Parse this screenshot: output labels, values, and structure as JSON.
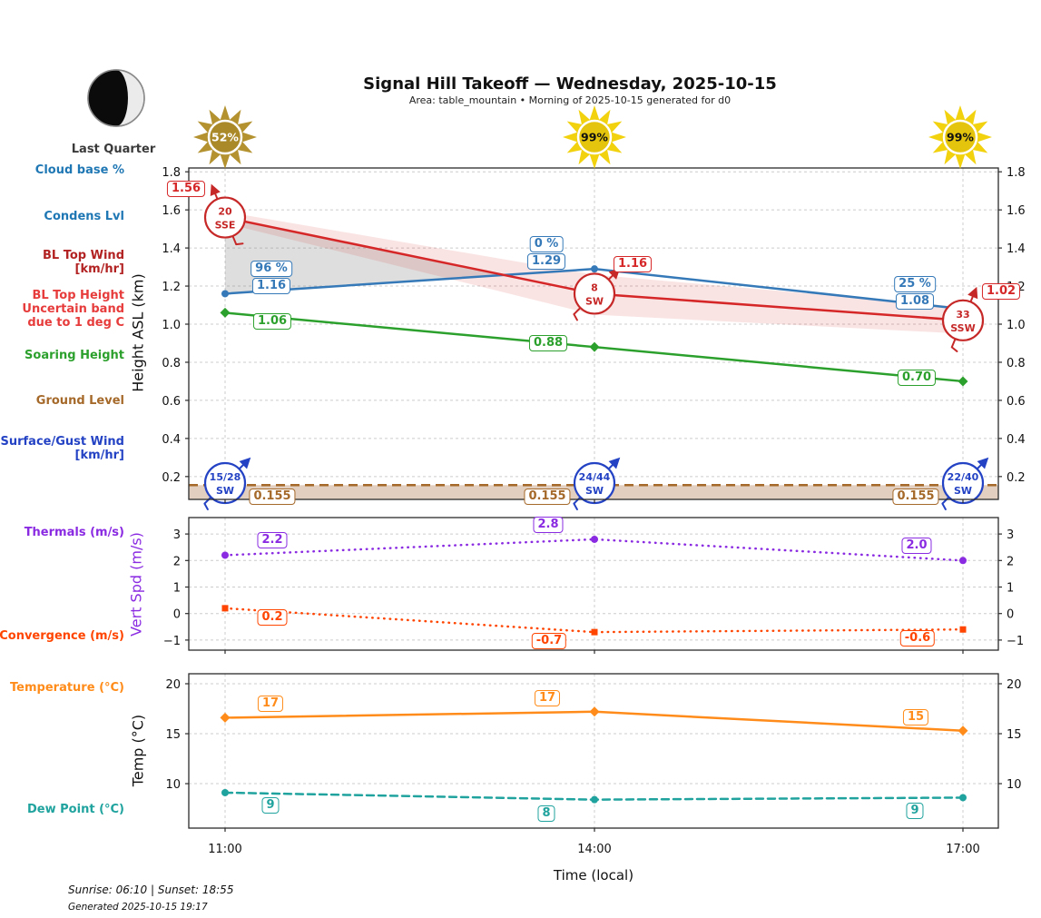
{
  "header": {
    "title": "Signal Hill Takeoff — Wednesday, 2025-10-15",
    "subtitle": "Area: table_mountain • Morning of 2025-10-15 generated for d0"
  },
  "moon": {
    "phase_label": "Last Quarter"
  },
  "suns": [
    {
      "pct": "52%",
      "variant": "dim",
      "color": "#b3922f"
    },
    {
      "pct": "99%",
      "variant": "bright",
      "color": "#f2d20e"
    },
    {
      "pct": "99%",
      "variant": "bright",
      "color": "#f2d20e"
    }
  ],
  "left_labels": [
    {
      "id": "cloud-base-pct",
      "text": "Cloud base %",
      "color": "#1f77b4"
    },
    {
      "id": "condens-lvl",
      "text": "Condens Lvl",
      "color": "#1f77b4"
    },
    {
      "id": "bl-top-wind-1",
      "text": "BL Top Wind",
      "color": "#b22222"
    },
    {
      "id": "bl-top-wind-2",
      "text": "[km/hr]",
      "color": "#b22222"
    },
    {
      "id": "bl-top-height-1",
      "text": "BL Top Height",
      "color": "#e73c3c"
    },
    {
      "id": "bl-top-height-2",
      "text": "Uncertain band",
      "color": "#e73c3c"
    },
    {
      "id": "bl-top-height-3",
      "text": "due to 1 deg C",
      "color": "#e73c3c"
    },
    {
      "id": "soaring-height",
      "text": "Soaring Height",
      "color": "#2ca02c"
    },
    {
      "id": "ground-level",
      "text": "Ground Level",
      "color": "#a5692a"
    },
    {
      "id": "surface-gust-wind-1",
      "text": "Surface/Gust Wind",
      "color": "#2443c4"
    },
    {
      "id": "surface-gust-wind-2",
      "text": "[km/hr]",
      "color": "#2443c4"
    },
    {
      "id": "thermals",
      "text": "Thermals (m/s)",
      "color": "#8a2be2"
    },
    {
      "id": "convergence",
      "text": "Convergence (m/s)",
      "color": "#ff4500"
    },
    {
      "id": "temperature",
      "text": "Temperature (°C)",
      "color": "#ff8c1a"
    },
    {
      "id": "dew-point",
      "text": "Dew Point (°C)",
      "color": "#20a39e"
    }
  ],
  "time_axis": {
    "ticks": [
      "11:00",
      "14:00",
      "17:00"
    ],
    "label": "Time (local)"
  },
  "footer": {
    "sun_times": "Sunrise: 06:10 | Sunset: 18:55",
    "generated": "Generated 2025-10-15 19:17"
  },
  "chart_data": [
    {
      "type": "line",
      "panel": "height",
      "ylabel": "Height ASL (km)",
      "x": [
        "11:00",
        "14:00",
        "17:00"
      ],
      "ylim": [
        0.08,
        1.82
      ],
      "yticks": [
        0.2,
        0.4,
        0.6,
        0.8,
        1.0,
        1.2,
        1.4,
        1.6,
        1.8
      ],
      "grid": true,
      "series": [
        {
          "name": "Condens Lvl",
          "color": "#3579b8",
          "marker": "circle",
          "values": [
            1.16,
            1.29,
            1.08
          ],
          "value_labels": [
            "1.16",
            "1.29",
            "1.08"
          ],
          "cloud_base_pct_labels": [
            "96 %",
            "0 %",
            "25 %"
          ]
        },
        {
          "name": "BL Top Height",
          "color": "#d62728",
          "marker": "none",
          "values": [
            1.56,
            1.16,
            1.02
          ],
          "value_labels": [
            "1.56",
            "1.16",
            "1.02"
          ]
        },
        {
          "name": "Soaring Height",
          "color": "#2ca02c",
          "marker": "diamond",
          "values": [
            1.06,
            0.88,
            0.7
          ],
          "value_labels": [
            "1.06",
            "0.88",
            "0.70"
          ]
        },
        {
          "name": "Ground Level",
          "color": "#a5692a",
          "style": "dashed",
          "value": 0.155,
          "value_labels": [
            "0.155",
            "0.155",
            "0.155"
          ]
        }
      ],
      "bands": [
        {
          "name": "bl-top-uncertainty-band",
          "fill": "rgba(214,39,40,0.13)",
          "x_hours": [
            11,
            14,
            17
          ],
          "top": [
            1.59,
            1.26,
            1.09
          ],
          "bottom": [
            1.53,
            1.05,
            0.95
          ]
        },
        {
          "name": "cloud-layer-band",
          "fill": "rgba(125,125,125,0.25)",
          "x_hours": [
            11,
            13.26
          ],
          "top": [
            1.56,
            1.258
          ],
          "bottom": [
            1.16,
            1.258
          ]
        }
      ],
      "wind_bl_top": [
        {
          "speed": "20",
          "dir": "SSE"
        },
        {
          "speed": "8",
          "dir": "SW"
        },
        {
          "speed": "33",
          "dir": "SSW"
        }
      ],
      "wind_surface": [
        {
          "speed": "15/28",
          "dir": "SW"
        },
        {
          "speed": "24/44",
          "dir": "SW"
        },
        {
          "speed": "22/40",
          "dir": "SW"
        }
      ]
    },
    {
      "type": "line",
      "panel": "vert-speed",
      "ylabel": "Vert Spd (m/s)",
      "ylabel_color": "#8a2be2",
      "x": [
        "11:00",
        "14:00",
        "17:00"
      ],
      "ylim": [
        -1.38,
        3.62
      ],
      "yticks": [
        -1,
        0,
        1,
        2,
        3
      ],
      "grid": true,
      "series": [
        {
          "name": "Thermals",
          "color": "#8a2be2",
          "marker": "circle",
          "style": "dotted",
          "values": [
            2.2,
            2.8,
            2.0
          ],
          "value_labels": [
            "2.2",
            "2.8",
            "2.0"
          ]
        },
        {
          "name": "Convergence",
          "color": "#ff4500",
          "marker": "square",
          "style": "dotted",
          "values": [
            0.2,
            -0.7,
            -0.6
          ],
          "value_labels": [
            "0.2",
            "-0.7",
            "-0.6"
          ]
        }
      ]
    },
    {
      "type": "line",
      "panel": "temperature",
      "ylabel": "Temp (°C)",
      "x": [
        "11:00",
        "14:00",
        "17:00"
      ],
      "ylim": [
        5.55,
        21.0
      ],
      "yticks": [
        10,
        15,
        20
      ],
      "grid": true,
      "series": [
        {
          "name": "Temperature",
          "color": "#ff8c1a",
          "marker": "diamond",
          "values": [
            16.6,
            17.2,
            15.3
          ],
          "value_labels": [
            "17",
            "17",
            "15"
          ]
        },
        {
          "name": "Dew Point",
          "color": "#20a39e",
          "marker": "circle",
          "style": "dashed",
          "values": [
            9.1,
            8.4,
            8.6
          ],
          "value_labels": [
            "9",
            "8",
            "9"
          ]
        }
      ]
    }
  ]
}
